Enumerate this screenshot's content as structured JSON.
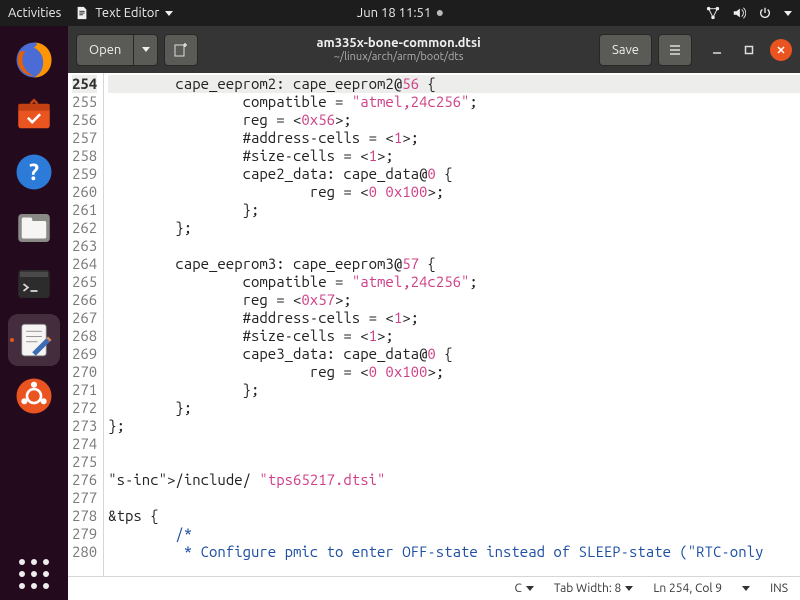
{
  "topbar": {
    "activities": "Activities",
    "app_menu": "Text Editor",
    "clock": "Jun 18  11:51"
  },
  "dock": {
    "items": [
      {
        "name": "firefox"
      },
      {
        "name": "software"
      },
      {
        "name": "help"
      },
      {
        "name": "files"
      },
      {
        "name": "terminal"
      },
      {
        "name": "text-editor"
      },
      {
        "name": "ubuntu-placeholder"
      }
    ]
  },
  "header": {
    "open": "Open",
    "save": "Save",
    "title": "am335x-bone-common.dtsi",
    "subtitle": "~/linux/arch/arm/boot/dts"
  },
  "editor": {
    "first_line": 254,
    "current_line": 254,
    "lines": [
      "        cape_eeprom2: cape_eeprom2@56 {",
      "                compatible = \"atmel,24c256\";",
      "                reg = <0x56>;",
      "                #address-cells = <1>;",
      "                #size-cells = <1>;",
      "                cape2_data: cape_data@0 {",
      "                        reg = <0 0x100>;",
      "                };",
      "        };",
      "",
      "        cape_eeprom3: cape_eeprom3@57 {",
      "                compatible = \"atmel,24c256\";",
      "                reg = <0x57>;",
      "                #address-cells = <1>;",
      "                #size-cells = <1>;",
      "                cape3_data: cape_data@0 {",
      "                        reg = <0 0x100>;",
      "                };",
      "        };",
      "};",
      "",
      "",
      "/include/ \"tps65217.dtsi\"",
      "",
      "&tps {",
      "        /*",
      "         * Configure pmic to enter OFF-state instead of SLEEP-state (\"RTC-only"
    ],
    "colors": {
      "string": "#ce3e87",
      "number": "#ce3e87",
      "keyword": "#1e4fa3",
      "comment": "#1e4fa3",
      "include": "#7a5900"
    }
  },
  "statusbar": {
    "lang": "C",
    "tabwidth": "Tab Width: 8",
    "position": "Ln 254, Col 9",
    "ins": "INS"
  }
}
